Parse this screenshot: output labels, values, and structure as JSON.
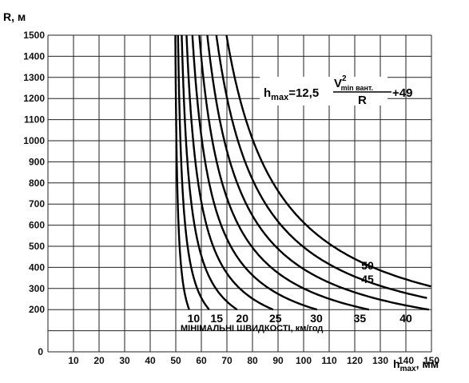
{
  "chart_data": {
    "type": "line",
    "x_axis": {
      "label": "h",
      "label_subscript": "max",
      "label_suffix": ", мм",
      "ticks": [
        "10",
        "20",
        "30",
        "40",
        "50",
        "60",
        "70",
        "80",
        "90",
        "100",
        "110",
        "120",
        "130",
        "140",
        "150"
      ],
      "zero": "0",
      "range": [
        0,
        150
      ]
    },
    "y_axis": {
      "label": "R, м",
      "ticks": [
        "200",
        "300",
        "400",
        "500",
        "600",
        "700",
        "800",
        "900",
        "1000",
        "1100",
        "1200",
        "1300",
        "1400",
        "1500"
      ],
      "zero": "0",
      "range": [
        0,
        1500
      ]
    },
    "grid": true,
    "formula": {
      "lhs": "h",
      "lhs_sub": "max",
      "eq": "=12,5",
      "num_v": "V",
      "num_sup": "2",
      "num_sub": "min вант.",
      "den": "R",
      "tail": "+49"
    },
    "caption": "МІНІМАЛЬНІ ШВИДКОСТІ, км/год",
    "series": [
      {
        "name": "10",
        "v": 10,
        "label_x": 57,
        "label_y": 160
      },
      {
        "name": "15",
        "v": 15,
        "label_x": 66,
        "label_y": 160
      },
      {
        "name": "20",
        "v": 20,
        "label_x": 76,
        "label_y": 160
      },
      {
        "name": "25",
        "v": 25,
        "label_x": 89,
        "label_y": 160
      },
      {
        "name": "30",
        "v": 30,
        "label_x": 105,
        "label_y": 160
      },
      {
        "name": "35",
        "v": 35,
        "label_x": 122,
        "label_y": 160
      },
      {
        "name": "40",
        "v": 40,
        "label_x": 140,
        "label_y": 160
      },
      {
        "name": "45",
        "v": 45,
        "label_x": 125,
        "label_y": 345
      },
      {
        "name": "50",
        "v": 50,
        "label_x": 125,
        "label_y": 410
      }
    ]
  }
}
